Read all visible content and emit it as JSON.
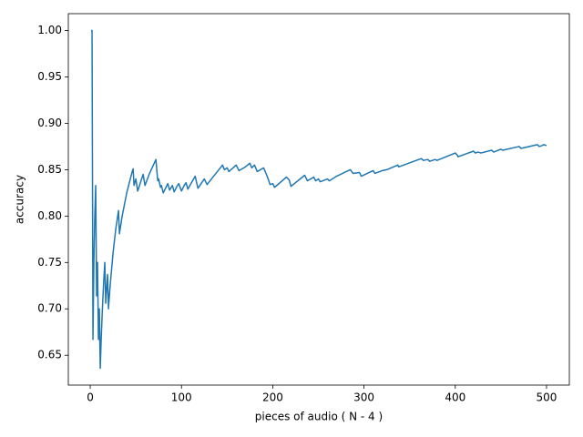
{
  "chart_data": {
    "type": "line",
    "x_label": "pieces of audio ( N - 4 )",
    "y_label": "accuracy",
    "color": "#1f77b4",
    "x": [
      1,
      2,
      3,
      4,
      5,
      6,
      7,
      8,
      9,
      10,
      11,
      12,
      13,
      14,
      15,
      16,
      17,
      18,
      19,
      20,
      21,
      22,
      25,
      28,
      31,
      32,
      35,
      40,
      46,
      47,
      48,
      50,
      52,
      55,
      58,
      60,
      65,
      72,
      73,
      74,
      75,
      77,
      78,
      80,
      83,
      85,
      87,
      90,
      92,
      95,
      97,
      100,
      103,
      105,
      107,
      115,
      118,
      125,
      128,
      145,
      147,
      150,
      152,
      160,
      163,
      170,
      175,
      177,
      180,
      183,
      190,
      193,
      195,
      197,
      200,
      202,
      215,
      218,
      220,
      235,
      238,
      245,
      247,
      250,
      252,
      260,
      262,
      270,
      285,
      288,
      295,
      297,
      310,
      312,
      320,
      325,
      337,
      338,
      360,
      363,
      365,
      370,
      372,
      378,
      380,
      400,
      402,
      403,
      420,
      422,
      425,
      428,
      440,
      442,
      450,
      452,
      470,
      472,
      490,
      492,
      495,
      497,
      500
    ],
    "values": [
      1.0,
      1.0,
      0.667,
      0.75,
      0.8,
      0.833,
      0.714,
      0.75,
      0.667,
      0.7,
      0.636,
      0.667,
      0.692,
      0.714,
      0.733,
      0.75,
      0.706,
      0.722,
      0.737,
      0.7,
      0.714,
      0.727,
      0.76,
      0.786,
      0.806,
      0.781,
      0.8,
      0.825,
      0.848,
      0.851,
      0.833,
      0.84,
      0.827,
      0.836,
      0.845,
      0.833,
      0.846,
      0.861,
      0.849,
      0.838,
      0.84,
      0.831,
      0.833,
      0.825,
      0.831,
      0.835,
      0.828,
      0.833,
      0.826,
      0.832,
      0.835,
      0.827,
      0.833,
      0.836,
      0.829,
      0.843,
      0.83,
      0.84,
      0.834,
      0.855,
      0.85,
      0.852,
      0.848,
      0.855,
      0.849,
      0.853,
      0.857,
      0.852,
      0.855,
      0.848,
      0.852,
      0.845,
      0.84,
      0.834,
      0.835,
      0.831,
      0.842,
      0.839,
      0.832,
      0.844,
      0.838,
      0.842,
      0.838,
      0.84,
      0.837,
      0.84,
      0.838,
      0.843,
      0.85,
      0.846,
      0.847,
      0.843,
      0.849,
      0.846,
      0.849,
      0.85,
      0.855,
      0.853,
      0.861,
      0.862,
      0.86,
      0.861,
      0.859,
      0.861,
      0.86,
      0.868,
      0.866,
      0.864,
      0.87,
      0.868,
      0.869,
      0.868,
      0.871,
      0.869,
      0.872,
      0.871,
      0.875,
      0.873,
      0.877,
      0.875,
      0.876,
      0.877,
      0.876
    ],
    "xlim": [
      -24,
      525
    ],
    "xticks": [
      0,
      100,
      200,
      300,
      400,
      500
    ],
    "ylim": [
      0.6178,
      1.0182
    ],
    "yticks": [
      0.65,
      {
        "value": 0.7,
        "label": "0.70"
      },
      0.75,
      {
        "value": 0.8,
        "label": "0.80"
      },
      0.85,
      {
        "value": 0.9,
        "label": "0.90"
      },
      0.95,
      {
        "value": 1.0,
        "label": "1.00"
      }
    ]
  }
}
